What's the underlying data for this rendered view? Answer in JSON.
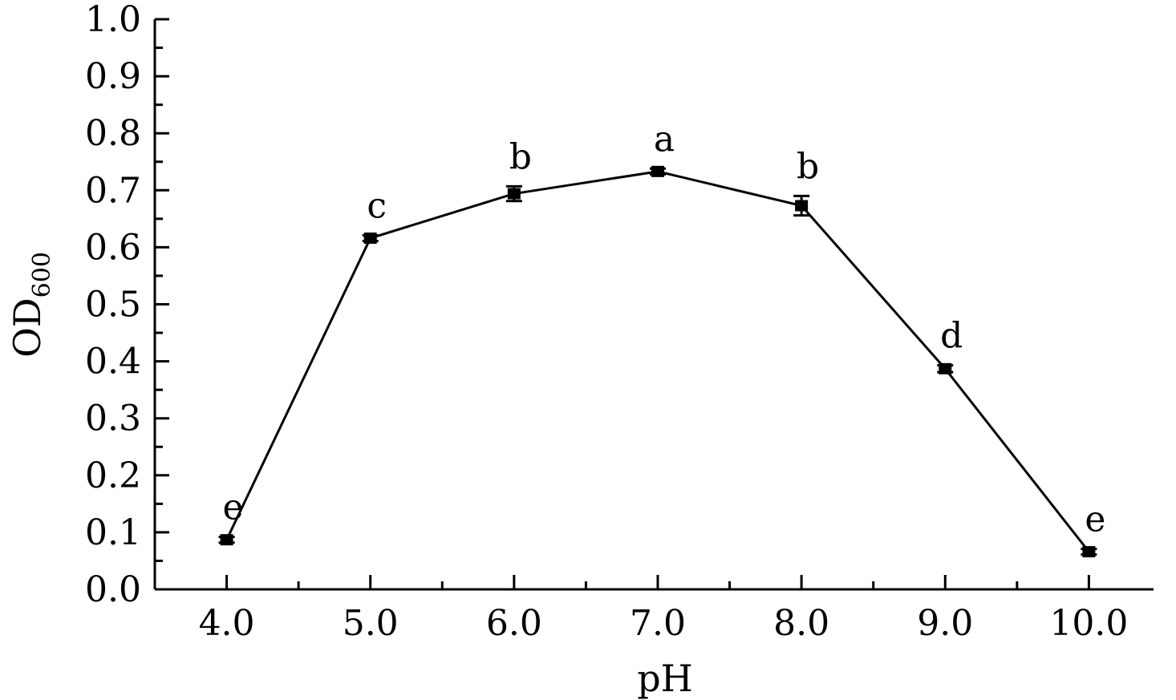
{
  "chart_data": {
    "type": "line",
    "title": "",
    "xlabel": "pH",
    "ylabel": {
      "main": "OD",
      "subscript": "600"
    },
    "x_ticks": [
      "4.0",
      "5.0",
      "6.0",
      "7.0",
      "8.0",
      "9.0",
      "10.0"
    ],
    "y_ticks": [
      "0.0",
      "0.1",
      "0.2",
      "0.3",
      "0.4",
      "0.5",
      "0.6",
      "0.7",
      "0.8",
      "0.9",
      "1.0"
    ],
    "xlim": [
      3.5,
      10.45
    ],
    "ylim": [
      0,
      1.0
    ],
    "grid": false,
    "legend": "none",
    "color": "#000000",
    "marker": "square",
    "x": [
      4.0,
      5.0,
      6.0,
      7.0,
      8.0,
      9.0,
      10.0
    ],
    "series": [
      {
        "values": [
          0.087,
          0.616,
          0.694,
          0.733,
          0.673,
          0.387,
          0.066
        ],
        "error": [
          0.005,
          0.005,
          0.013,
          0.005,
          0.017,
          0.006,
          0.005
        ],
        "labels": [
          "e",
          "c",
          "b",
          "a",
          "b",
          "d",
          "e"
        ]
      }
    ]
  }
}
